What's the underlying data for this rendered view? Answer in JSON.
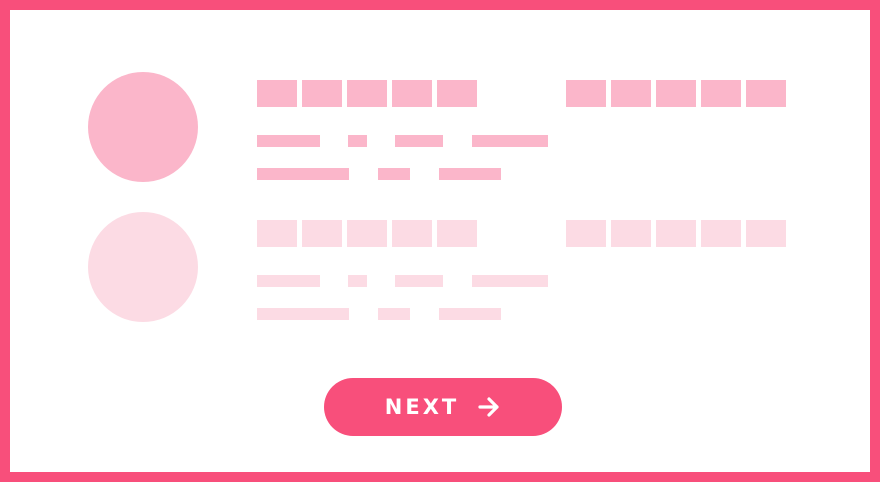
{
  "colors": {
    "accent": "#f84f7b",
    "skeleton": "#fbb6ca",
    "skeleton_faded": "#fcdbe4"
  },
  "skeleton_cards": [
    {
      "state": "loading"
    },
    {
      "state": "loading-faded"
    }
  ],
  "button": {
    "label": "NEXT",
    "icon": "arrow-right-icon"
  }
}
